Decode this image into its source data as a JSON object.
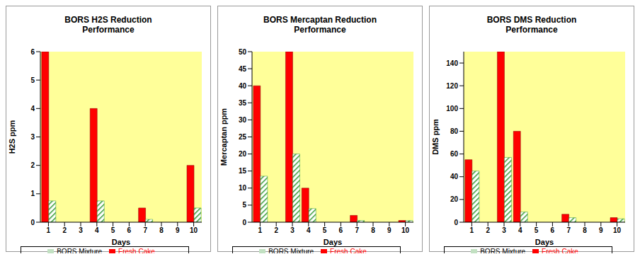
{
  "chart_data": [
    {
      "type": "bar",
      "title": "BORS H2S Reduction Performance",
      "x_label": "Days",
      "y_label": "H2S ppm",
      "categories": [
        "1",
        "2",
        "3",
        "4",
        "5",
        "6",
        "7",
        "8",
        "9",
        "10"
      ],
      "series": [
        {
          "name": "Fresh Cake",
          "color": "#ff0000",
          "values": [
            6,
            null,
            null,
            4,
            null,
            null,
            0.5,
            null,
            null,
            2
          ]
        },
        {
          "name": "BORS Mixture",
          "color": "#339933",
          "values": [
            0.75,
            null,
            null,
            0.75,
            null,
            null,
            0.1,
            null,
            null,
            0.5
          ]
        }
      ],
      "ylim": [
        0,
        6
      ],
      "yticks": [
        0,
        1,
        2,
        3,
        4,
        5,
        6
      ],
      "grid": false,
      "legend": "bottom"
    },
    {
      "type": "bar",
      "title": "BORS Mercaptan Reduction Performance",
      "x_label": "Days",
      "y_label": "Mercaptan ppm",
      "categories": [
        "1",
        "2",
        "3",
        "4",
        "5",
        "6",
        "7",
        "8",
        "9",
        "10"
      ],
      "series": [
        {
          "name": "Fresh Cake",
          "color": "#ff0000",
          "values": [
            40,
            null,
            50,
            10,
            null,
            null,
            2,
            null,
            null,
            0.5
          ]
        },
        {
          "name": "BORS Mixture",
          "color": "#339933",
          "values": [
            13.5,
            null,
            20,
            4,
            null,
            null,
            0.5,
            null,
            null,
            0.5
          ]
        }
      ],
      "ylim": [
        0,
        50
      ],
      "yticks": [
        0,
        5,
        10,
        15,
        20,
        25,
        30,
        35,
        40,
        45,
        50
      ],
      "grid": false,
      "legend": "bottom"
    },
    {
      "type": "bar",
      "title": "BORS DMS Reduction Performance",
      "x_label": "Days",
      "y_label": "DMS ppm",
      "categories": [
        "1",
        "2",
        "3",
        "4",
        "5",
        "6",
        "7",
        "8",
        "9",
        "10"
      ],
      "series": [
        {
          "name": "Fresh Cake",
          "color": "#ff0000",
          "values": [
            55,
            null,
            150,
            80,
            null,
            null,
            7,
            null,
            null,
            4
          ]
        },
        {
          "name": "BORS Mixture",
          "color": "#339933",
          "values": [
            45,
            null,
            57,
            9,
            null,
            null,
            4,
            null,
            null,
            3
          ]
        }
      ],
      "ylim": [
        0,
        150
      ],
      "yticks": [
        0,
        20,
        40,
        60,
        80,
        100,
        120,
        140
      ],
      "grid": false,
      "legend": "bottom"
    }
  ]
}
